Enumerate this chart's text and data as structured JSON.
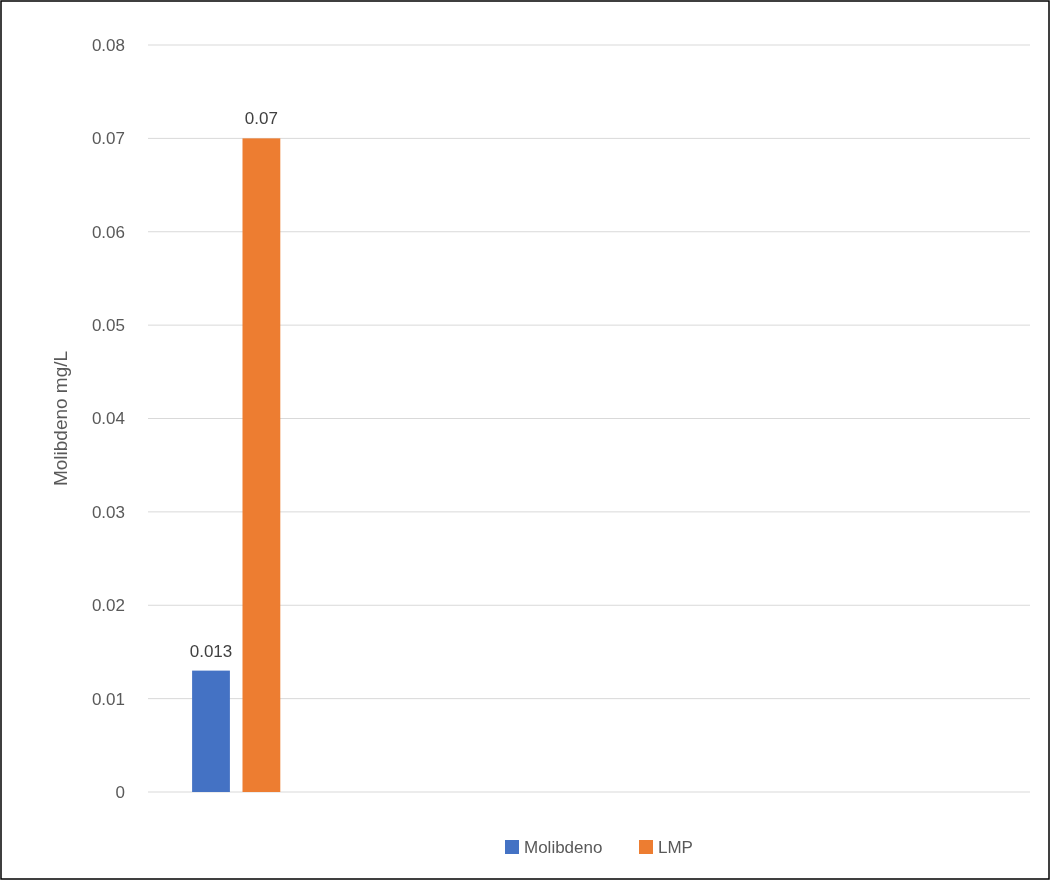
{
  "chart_data": {
    "type": "bar",
    "ylabel": "Molibdeno mg/L",
    "categories": [
      null,
      null,
      null,
      null,
      null
    ],
    "series": [
      {
        "name": "Molibdeno",
        "color": "#4472c4",
        "values": [
          0.013,
          null,
          null,
          null,
          null
        ]
      },
      {
        "name": "LMP",
        "color": "#ed7d31",
        "values": [
          0.07,
          null,
          null,
          null,
          null
        ]
      }
    ],
    "ylim": [
      0,
      0.08
    ],
    "yticks": [
      0,
      0.01,
      0.02,
      0.03,
      0.04,
      0.05,
      0.06,
      0.07,
      0.08
    ],
    "grid": "y",
    "legend": "bottom",
    "data_labels": true
  }
}
